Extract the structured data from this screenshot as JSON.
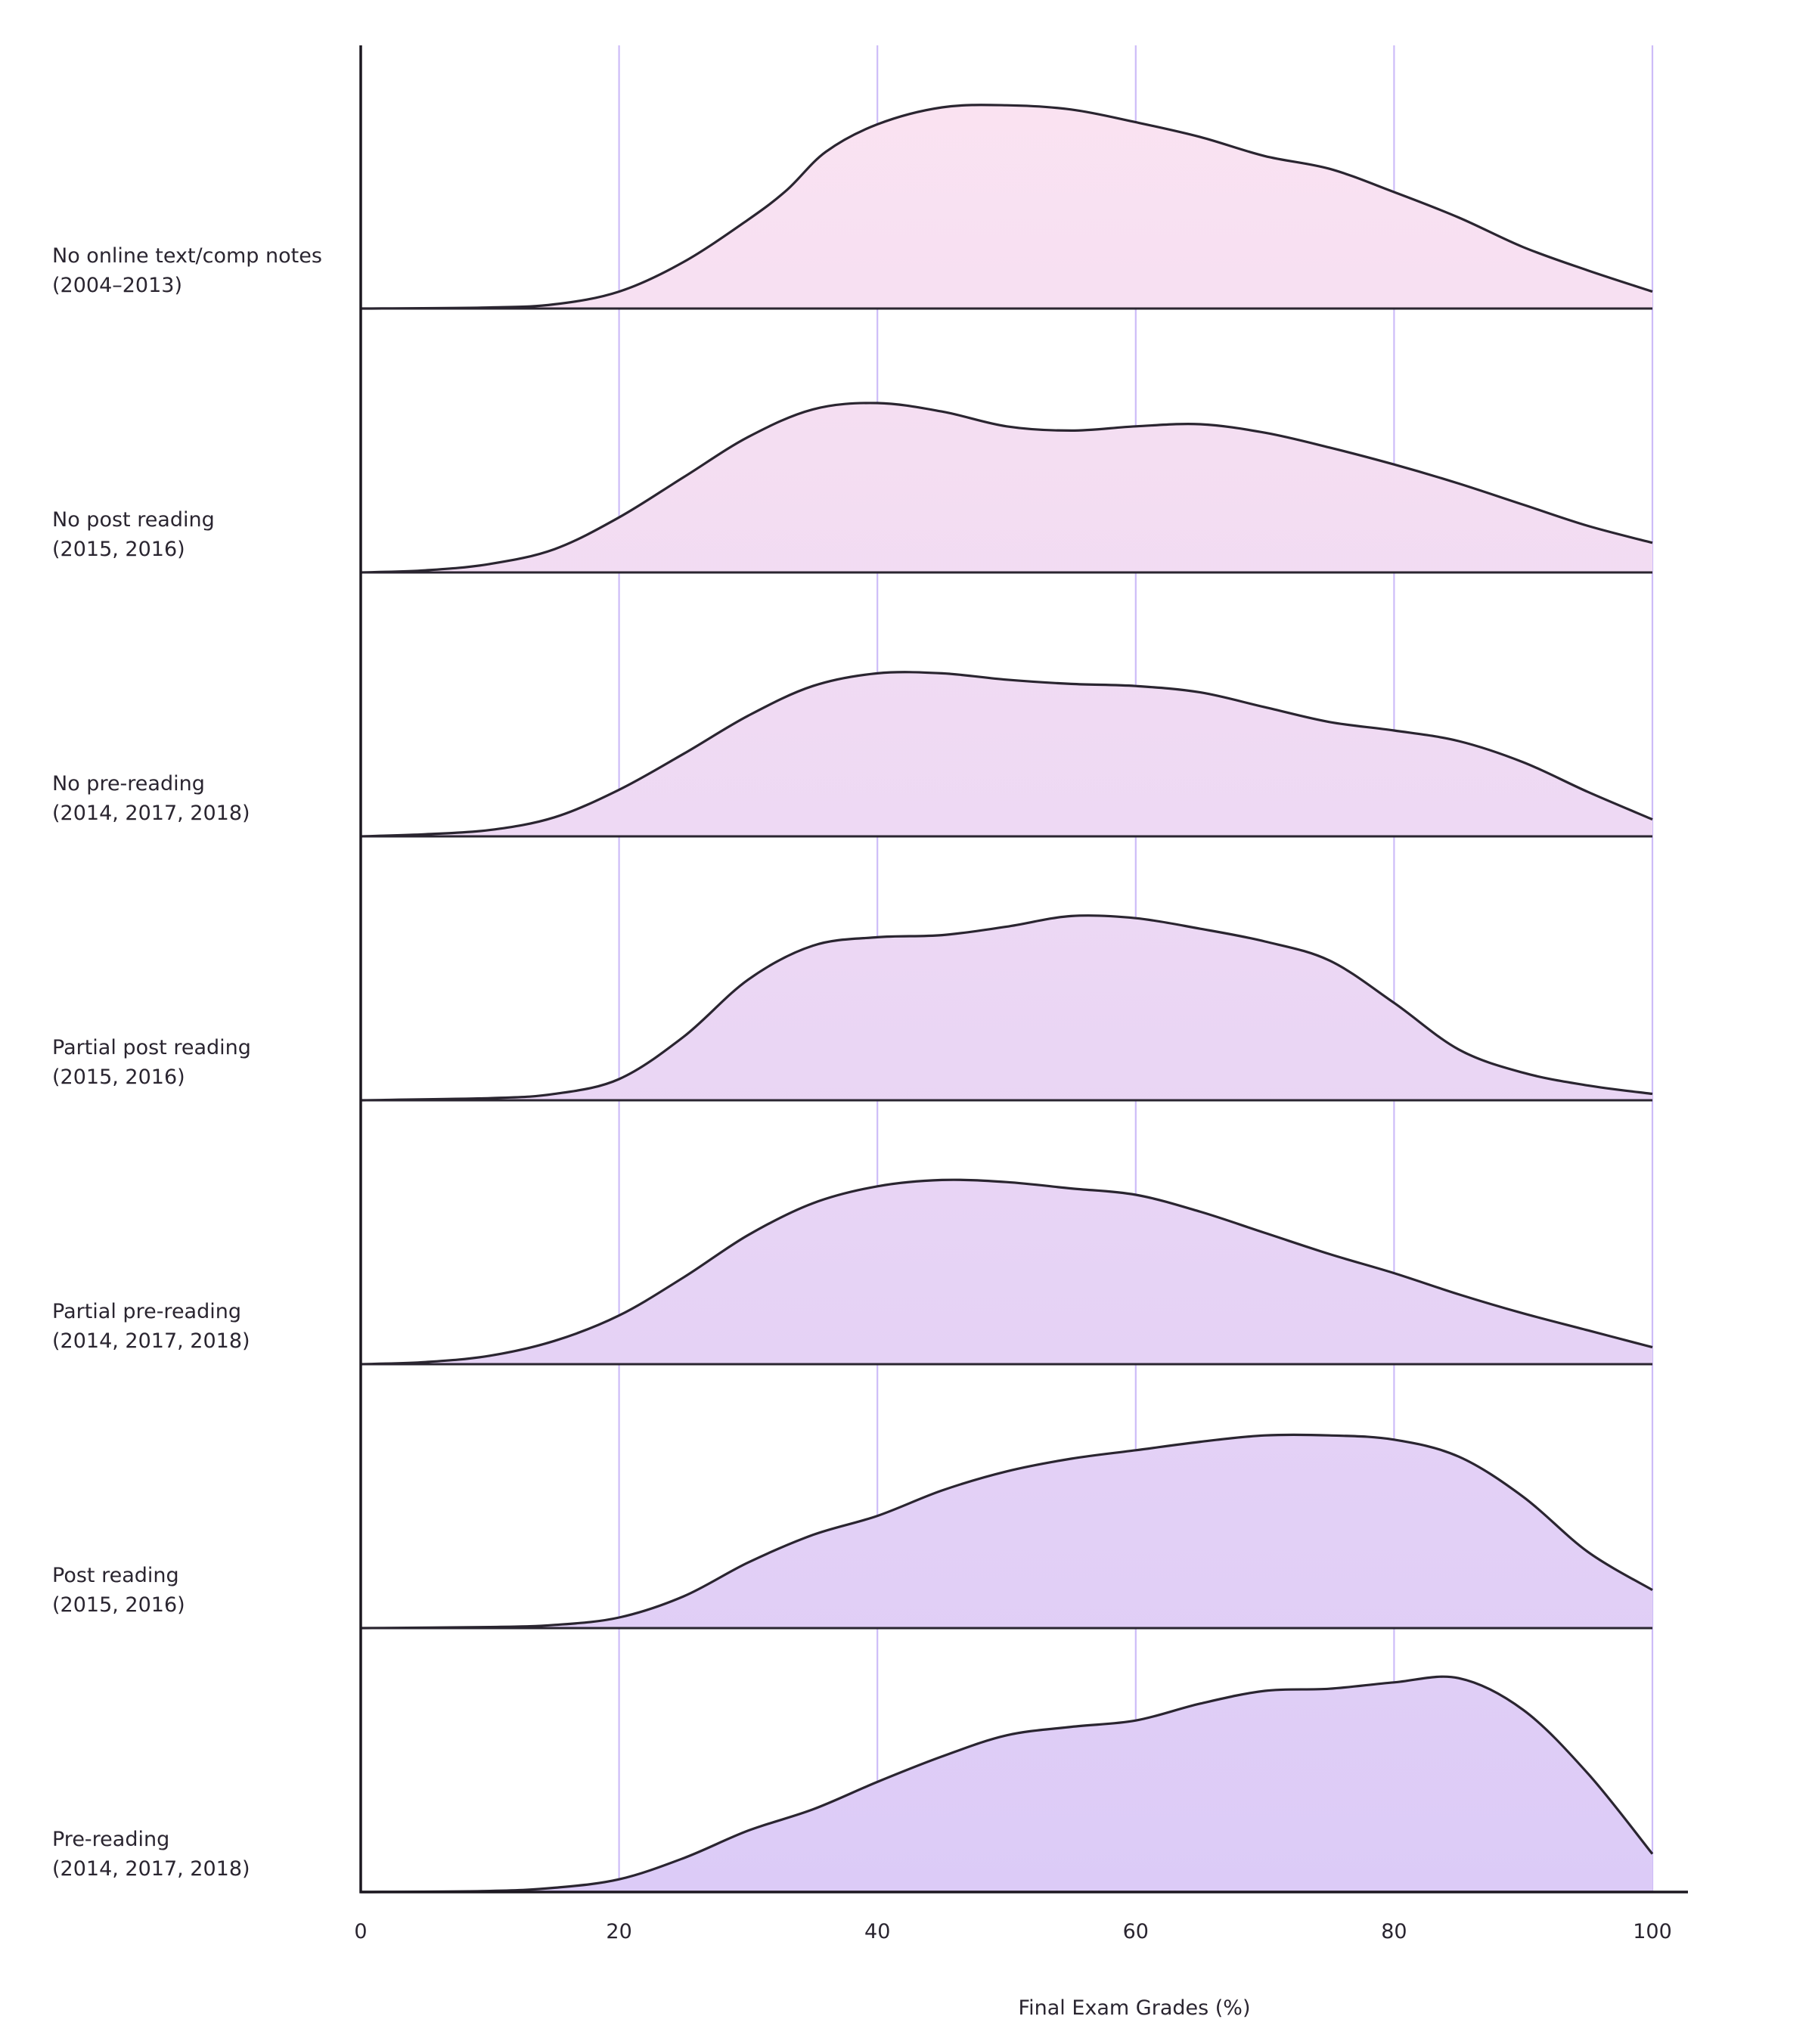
{
  "chart_data": {
    "type": "ridgeline",
    "xlabel": "Final Exam Grades (%)",
    "xlim": [
      0,
      100
    ],
    "xticks": [
      0,
      20,
      40,
      60,
      80,
      100
    ],
    "grid": "vertical",
    "fill_gradient": [
      "#fbe3f1",
      "#dccbf7"
    ],
    "line_color": "#2a2530",
    "grid_color": "#cdbcf8",
    "series": [
      {
        "name": "No online text/comp notes",
        "years": "(2004–2013)",
        "x": [
          0,
          10,
          15,
          20,
          25,
          30,
          33,
          36,
          40,
          45,
          50,
          55,
          60,
          65,
          70,
          75,
          80,
          85,
          90,
          95,
          100
        ],
        "y": [
          0,
          0.5,
          2,
          8,
          22,
          42,
          56,
          74,
          87,
          95,
          96,
          94,
          88,
          81,
          72,
          66,
          55,
          43,
          29,
          18,
          8
        ]
      },
      {
        "name": "No post reading",
        "years": "(2015, 2016)",
        "x": [
          0,
          5,
          10,
          15,
          20,
          25,
          30,
          35,
          40,
          45,
          50,
          55,
          60,
          65,
          70,
          75,
          80,
          85,
          90,
          95,
          100
        ],
        "y": [
          0,
          1,
          4,
          11,
          26,
          45,
          64,
          77,
          80,
          76,
          69,
          67,
          69,
          70,
          66,
          59,
          51,
          42,
          32,
          22,
          14
        ]
      },
      {
        "name": "No pre-reading",
        "years": "(2014, 2017, 2018)",
        "x": [
          0,
          5,
          10,
          15,
          20,
          25,
          30,
          35,
          40,
          45,
          50,
          55,
          60,
          65,
          70,
          75,
          80,
          85,
          90,
          95,
          100
        ],
        "y": [
          0,
          1,
          3,
          9,
          22,
          39,
          57,
          71,
          77,
          77,
          74,
          72,
          71,
          68,
          61,
          54,
          50,
          45,
          35,
          21,
          8
        ]
      },
      {
        "name": "Partial post reading",
        "years": "(2015, 2016)",
        "x": [
          0,
          10,
          15,
          20,
          25,
          30,
          35,
          40,
          45,
          50,
          55,
          60,
          65,
          70,
          75,
          80,
          85,
          90,
          95,
          100
        ],
        "y": [
          0,
          1,
          3,
          10,
          30,
          57,
          73,
          77,
          78,
          82,
          87,
          86,
          81,
          75,
          66,
          46,
          24,
          13,
          7,
          3
        ]
      },
      {
        "name": "Partial pre-reading",
        "years": "(2014, 2017, 2018)",
        "x": [
          0,
          5,
          10,
          15,
          20,
          25,
          30,
          35,
          40,
          45,
          50,
          55,
          60,
          65,
          70,
          75,
          80,
          85,
          90,
          95,
          100
        ],
        "y": [
          0,
          1,
          4,
          11,
          23,
          41,
          61,
          76,
          84,
          87,
          86,
          83,
          80,
          72,
          62,
          52,
          43,
          33,
          24,
          16,
          8
        ]
      },
      {
        "name": "Post reading",
        "years": "(2015, 2016)",
        "x": [
          0,
          10,
          15,
          20,
          25,
          30,
          35,
          40,
          45,
          50,
          55,
          60,
          65,
          70,
          75,
          80,
          85,
          90,
          95,
          100
        ],
        "y": [
          0,
          0.5,
          1.5,
          5,
          15,
          31,
          44,
          53,
          65,
          74,
          80,
          84,
          88,
          91,
          91,
          89,
          81,
          62,
          36,
          18
        ]
      },
      {
        "name": "Pre-reading",
        "years": "(2014, 2017, 2018)",
        "x": [
          0,
          10,
          15,
          20,
          25,
          30,
          35,
          40,
          45,
          50,
          55,
          60,
          65,
          70,
          75,
          80,
          85,
          90,
          95,
          100
        ],
        "y": [
          0,
          0.5,
          2,
          6,
          16,
          29,
          39,
          52,
          64,
          74,
          78,
          81,
          89,
          95,
          96,
          99,
          101,
          86,
          56,
          18
        ]
      }
    ]
  }
}
